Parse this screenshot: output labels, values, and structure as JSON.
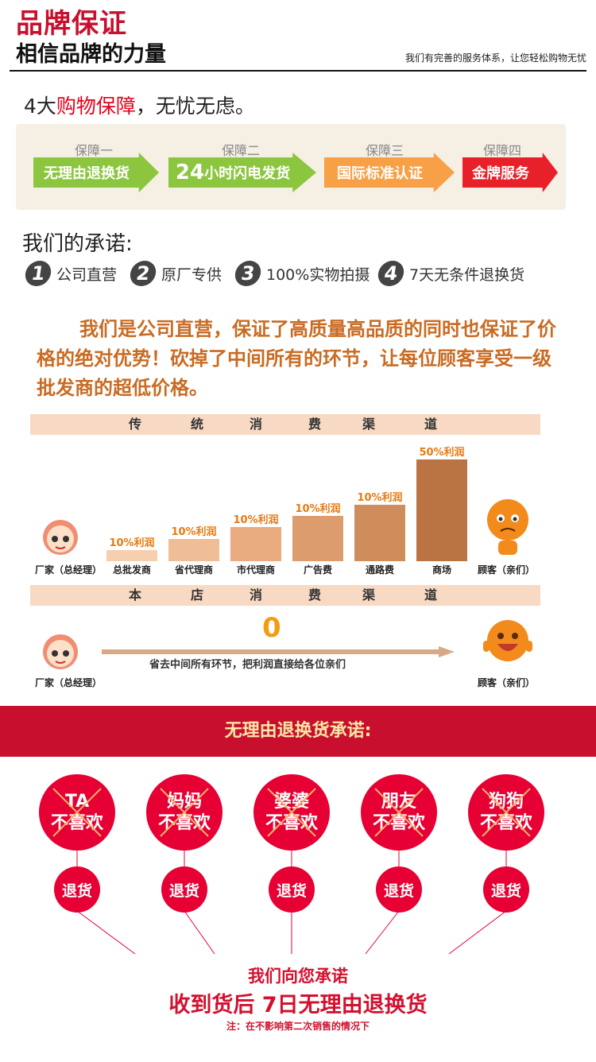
{
  "header": {
    "title": "品牌保证",
    "subtitle": "相信品牌的力量",
    "tagline": "我们有完善的服务体系，让您轻松购物无忧"
  },
  "guarantee": {
    "headline_prefix": "4大",
    "headline_highlight": "购物保障",
    "headline_suffix": "，无忧无虑。",
    "items": [
      {
        "label": "保障一",
        "text": "无理由退换货",
        "big": "",
        "color": "#8cc63f"
      },
      {
        "label": "保障二",
        "text": "小时闪电发货",
        "big": "24",
        "color": "#8cc63f"
      },
      {
        "label": "保障三",
        "text": "国际标准认证",
        "big": "",
        "color": "#f7a046"
      },
      {
        "label": "保障四",
        "text": "金牌服务",
        "big": "",
        "color": "#e8202a"
      }
    ]
  },
  "promise": {
    "title": "我们的承诺:",
    "items": [
      {
        "num": "1",
        "text": "公司直营"
      },
      {
        "num": "2",
        "text": "原厂专供"
      },
      {
        "num": "3",
        "text": "100%实物拍摄"
      },
      {
        "num": "4",
        "text": "7天无条件退换货"
      }
    ],
    "paragraph": "我们是公司直营，保证了高质量高品质的同时也保证了价格的绝对优势！砍掉了中间所有的环节，让每位顾客享受一级批发商的超低价格。"
  },
  "traditional": {
    "band": [
      "传",
      "统",
      "消",
      "费",
      "渠",
      "道"
    ],
    "start_label": "厂家（总经理）",
    "end_label": "顾客（亲们）",
    "bars": [
      {
        "name": "总批发商",
        "profit": "10%利润",
        "level": 10
      },
      {
        "name": "省代理商",
        "profit": "10%利润",
        "level": 20
      },
      {
        "name": "市代理商",
        "profit": "10%利润",
        "level": 30
      },
      {
        "name": "广告费",
        "profit": "10%利润",
        "level": 40
      },
      {
        "name": "通路费",
        "profit": "10%利润",
        "level": 50
      },
      {
        "name": "商场",
        "profit": "50%利润",
        "level": 90
      }
    ],
    "colors": [
      "#f6cfae",
      "#efbe96",
      "#e8ac80",
      "#dd9c6e",
      "#cf8d5c",
      "#ba7444"
    ]
  },
  "store": {
    "band": [
      "本",
      "店",
      "消",
      "费",
      "渠",
      "道"
    ],
    "zero": "0",
    "caption": "省去中间所有环节，把利润直接给各位亲们",
    "start_label": "厂家（总经理）",
    "end_label": "顾客（亲们）"
  },
  "returns": {
    "banner": "无理由退换货承诺:",
    "people": [
      {
        "who": "TA",
        "dislike": "不喜欢",
        "action": "退货"
      },
      {
        "who": "妈妈",
        "dislike": "不喜欢",
        "action": "退货"
      },
      {
        "who": "婆婆",
        "dislike": "不喜欢",
        "action": "退货"
      },
      {
        "who": "朋友",
        "dislike": "不喜欢",
        "action": "退货"
      },
      {
        "who": "狗狗",
        "dislike": "不喜欢",
        "action": "退货"
      }
    ],
    "pledge_line1": "我们向您承诺",
    "pledge_line2": "收到货后 7日无理由退换货",
    "note": "注：在不影响第二次销售的情况下"
  }
}
